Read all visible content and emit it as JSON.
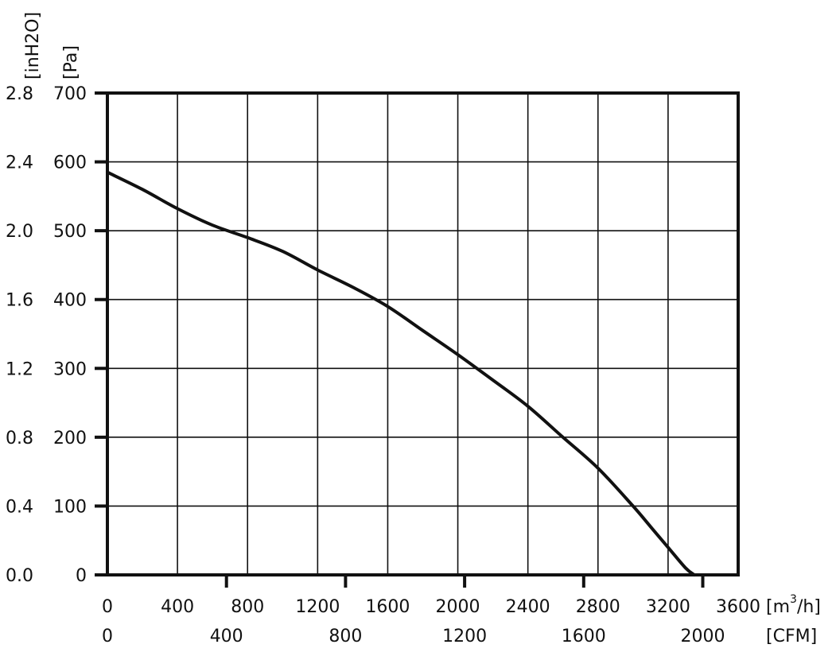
{
  "chart_data": {
    "type": "line",
    "title": "",
    "x_axis_primary": {
      "unit": "[m",
      "unit_sup": "3",
      "unit_suffix": "/h]",
      "range": [
        0,
        3600
      ],
      "ticks": [
        "0",
        "400",
        "800",
        "1200",
        "1600",
        "2000",
        "2400",
        "2800",
        "3200",
        "3600"
      ],
      "tick_values": [
        0,
        400,
        800,
        1200,
        1600,
        2000,
        2400,
        2800,
        3200,
        3600
      ]
    },
    "x_axis_secondary": {
      "unit": "[CFM]",
      "ticks": [
        "0",
        "400",
        "800",
        "1200",
        "1600",
        "2000"
      ],
      "tick_values": [
        0,
        400,
        800,
        1200,
        1600,
        2000
      ]
    },
    "y_axis_primary": {
      "unit": "[Pa]",
      "range": [
        0,
        700
      ],
      "ticks": [
        "0",
        "100",
        "200",
        "300",
        "400",
        "500",
        "600",
        "700"
      ],
      "tick_values": [
        0,
        100,
        200,
        300,
        400,
        500,
        600,
        700
      ]
    },
    "y_axis_secondary": {
      "unit": "[inH2O]",
      "ticks": [
        "0.0",
        "0.4",
        "0.8",
        "1.2",
        "1.6",
        "2.0",
        "2.4",
        "2.8"
      ]
    },
    "grid": true,
    "series": [
      {
        "x": [
          0,
          200,
          400,
          600,
          800,
          1000,
          1200,
          1400,
          1600,
          1800,
          2000,
          2200,
          2400,
          2600,
          2800,
          3000,
          3100,
          3200,
          3300,
          3350
        ],
        "values": [
          585,
          560,
          532,
          508,
          490,
          470,
          443,
          418,
          390,
          355,
          320,
          283,
          245,
          200,
          155,
          100,
          70,
          40,
          10,
          0
        ]
      }
    ]
  }
}
